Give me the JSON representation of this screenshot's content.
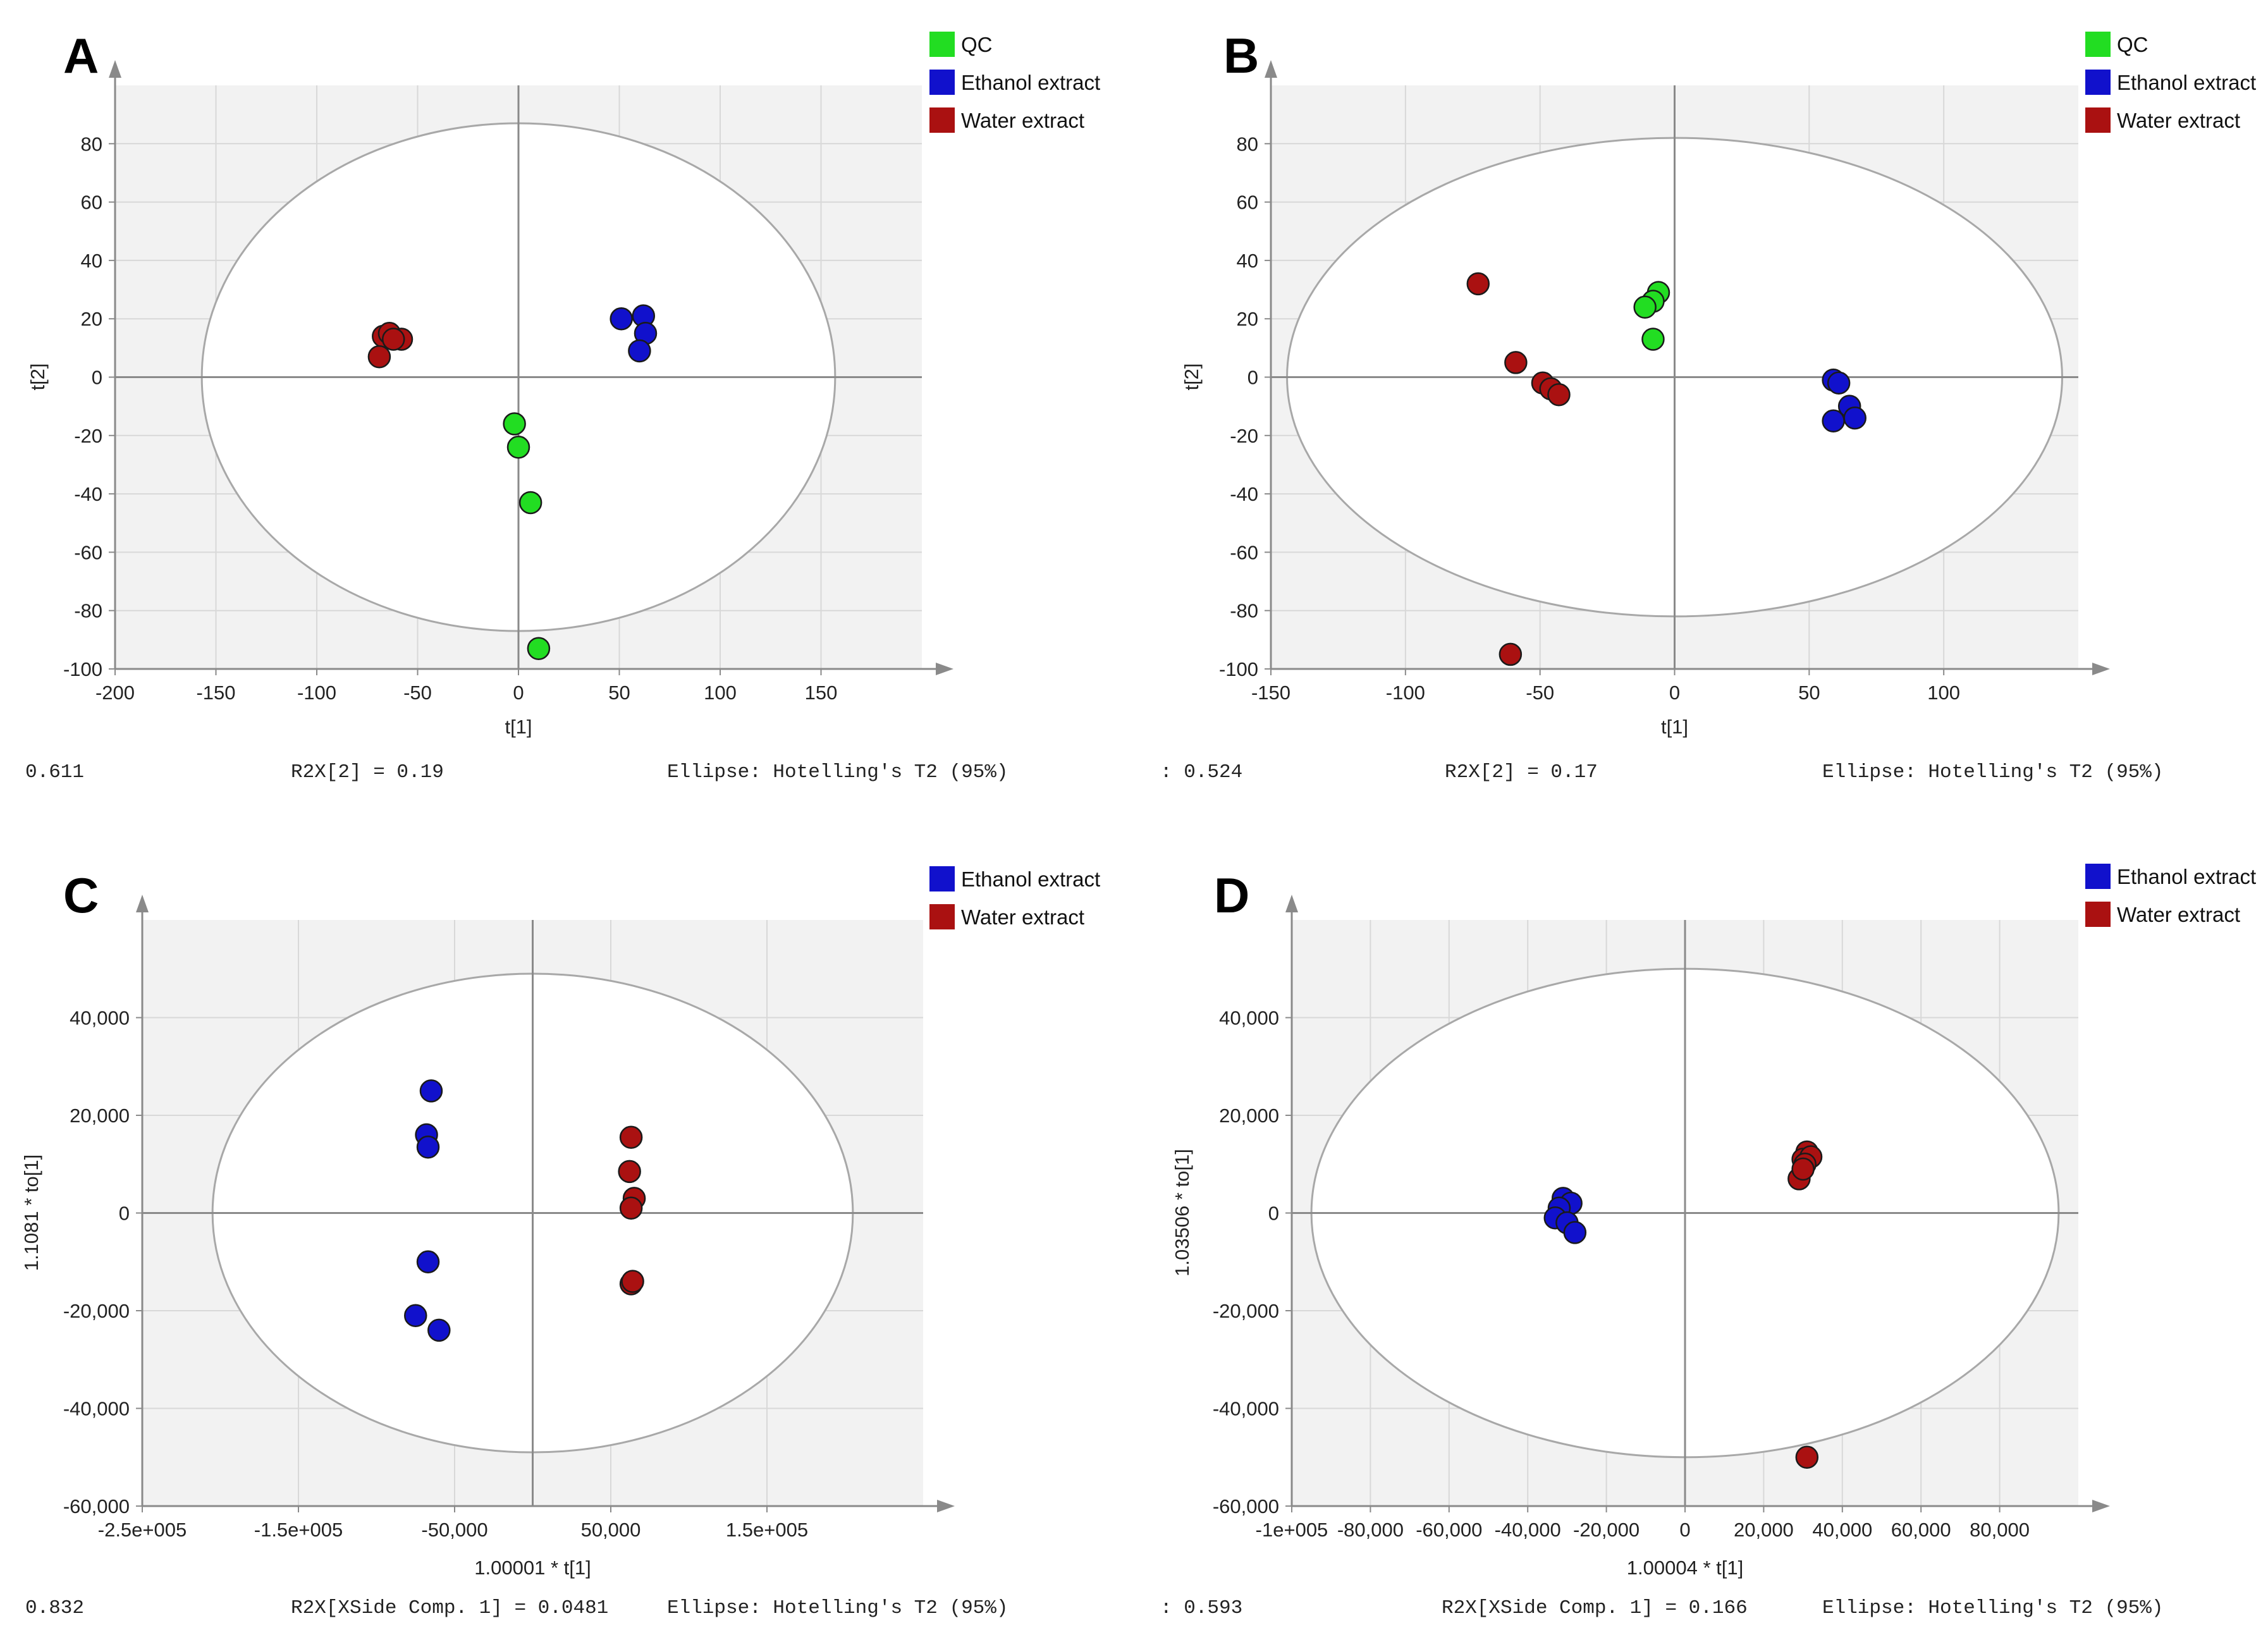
{
  "colors": {
    "QC": "#22dd22",
    "Ethanol extract": "#1111cc",
    "Water extract": "#aa1111",
    "plot_bg": "#f2f2f2",
    "grid": "#d8d8d8",
    "axis": "#8a8a8a"
  },
  "chart_data": [
    {
      "panel": "A",
      "type": "scatter",
      "xlabel": "t[1]",
      "ylabel": "t[2]",
      "xlim": [
        -200,
        200
      ],
      "ylim": [
        -100,
        100
      ],
      "xticks": [
        -200,
        -150,
        -100,
        -50,
        0,
        50,
        100,
        150
      ],
      "xtick_labels": [
        "-200",
        "-150",
        "-100",
        "-50",
        "0",
        "50",
        "100",
        "150"
      ],
      "yticks": [
        -100,
        -80,
        -60,
        -40,
        -20,
        0,
        20,
        40,
        60,
        80
      ],
      "ytick_labels": [
        "-100",
        "-80",
        "-60",
        "-40",
        "-20",
        "0",
        "20",
        "40",
        "60",
        "80"
      ],
      "ellipse": {
        "rx": 157,
        "ry": 87
      },
      "legend": [
        "QC",
        "Ethanol extract",
        "Water extract"
      ],
      "footer": {
        "left": "0.611",
        "mid": "R2X[2] = 0.19",
        "right": "Ellipse: Hotelling's T2 (95%)"
      },
      "series": [
        {
          "name": "QC",
          "x": [
            -2,
            0,
            6,
            10
          ],
          "y": [
            -16,
            -24,
            -43,
            -93
          ]
        },
        {
          "name": "Ethanol extract",
          "x": [
            51,
            62,
            63,
            60
          ],
          "y": [
            20,
            21,
            15,
            9
          ]
        },
        {
          "name": "Water extract",
          "x": [
            -67,
            -64,
            -58,
            -69,
            -62
          ],
          "y": [
            14,
            15,
            13,
            7,
            13
          ]
        }
      ]
    },
    {
      "panel": "B",
      "type": "scatter",
      "xlabel": "t[1]",
      "ylabel": "t[2]",
      "xlim": [
        -150,
        150
      ],
      "ylim": [
        -100,
        100
      ],
      "xticks": [
        -150,
        -100,
        -50,
        0,
        50,
        100
      ],
      "xtick_labels": [
        "-150",
        "-100",
        "-50",
        "0",
        "50",
        "100"
      ],
      "yticks": [
        -100,
        -80,
        -60,
        -40,
        -20,
        0,
        20,
        40,
        60,
        80
      ],
      "ytick_labels": [
        "-100",
        "-80",
        "-60",
        "-40",
        "-20",
        "0",
        "20",
        "40",
        "60",
        "80"
      ],
      "ellipse": {
        "rx": 144,
        "ry": 82
      },
      "legend": [
        "QC",
        "Ethanol extract",
        "Water extract"
      ],
      "footer": {
        "left": ": 0.524",
        "mid": "R2X[2] = 0.17",
        "right": "Ellipse: Hotelling's T2 (95%)"
      },
      "series": [
        {
          "name": "QC",
          "x": [
            -6,
            -8,
            -11,
            -8
          ],
          "y": [
            29,
            26,
            24,
            13
          ]
        },
        {
          "name": "Ethanol extract",
          "x": [
            59,
            61,
            65,
            59,
            67
          ],
          "y": [
            -1,
            -2,
            -10,
            -15,
            -14
          ]
        },
        {
          "name": "Water extract",
          "x": [
            -73,
            -59,
            -49,
            -46,
            -43,
            -61
          ],
          "y": [
            32,
            5,
            -2,
            -4,
            -6,
            -95
          ]
        }
      ]
    },
    {
      "panel": "C",
      "type": "scatter",
      "xlabel": "1.00001 * t[1]",
      "ylabel": "1.1081 * to[1]",
      "xlim": [
        -250000,
        250000
      ],
      "ylim": [
        -60000,
        60000
      ],
      "xticks": [
        -250000,
        -150000,
        -50000,
        50000,
        150000
      ],
      "xtick_labels": [
        "-2.5e+005",
        "-1.5e+005",
        "-50,000",
        "50,000",
        "1.5e+005"
      ],
      "yticks": [
        -60000,
        -40000,
        -20000,
        0,
        20000,
        40000
      ],
      "ytick_labels": [
        "-60,000",
        "-40,000",
        "-20,000",
        "0",
        "20,000",
        "40,000"
      ],
      "ellipse": {
        "rx": 205000,
        "ry": 49000
      },
      "legend": [
        "Ethanol extract",
        "Water extract"
      ],
      "footer": {
        "left": "0.832",
        "mid": "R2X[XSide Comp. 1] = 0.0481",
        "right": "Ellipse: Hotelling's T2 (95%)"
      },
      "series": [
        {
          "name": "Ethanol extract",
          "x": [
            -65000,
            -68000,
            -67000,
            -67000,
            -75000,
            -60000
          ],
          "y": [
            25000,
            16000,
            13500,
            -10000,
            -21000,
            -24000
          ]
        },
        {
          "name": "Water extract",
          "x": [
            63000,
            62000,
            65000,
            63000,
            63000,
            64000
          ],
          "y": [
            15500,
            8500,
            3000,
            1000,
            -14500,
            -14000
          ]
        }
      ]
    },
    {
      "panel": "D",
      "type": "scatter",
      "xlabel": "1.00004 * t[1]",
      "ylabel": "1.03506 * to[1]",
      "xlim": [
        -100000,
        100000
      ],
      "ylim": [
        -60000,
        60000
      ],
      "xticks": [
        -100000,
        -80000,
        -60000,
        -40000,
        -20000,
        0,
        20000,
        40000,
        60000,
        80000
      ],
      "xtick_labels": [
        "-1e+005",
        "-80,000",
        "-60,000",
        "-40,000",
        "-20,000",
        "0",
        "20,000",
        "40,000",
        "60,000",
        "80,000"
      ],
      "yticks": [
        -60000,
        -40000,
        -20000,
        0,
        20000,
        40000
      ],
      "ytick_labels": [
        "-60,000",
        "-40,000",
        "-20,000",
        "0",
        "20,000",
        "40,000"
      ],
      "ellipse": {
        "rx": 95000,
        "ry": 50000
      },
      "legend": [
        "Ethanol extract",
        "Water extract"
      ],
      "footer": {
        "left": ": 0.593",
        "mid": "R2X[XSide Comp. 1] = 0.166",
        "right": "Ellipse: Hotelling's T2 (95%)"
      },
      "series": [
        {
          "name": "Ethanol extract",
          "x": [
            -31000,
            -29000,
            -32000,
            -33000,
            -30000,
            -28000
          ],
          "y": [
            3000,
            2000,
            1000,
            -1000,
            -2000,
            -4000
          ]
        },
        {
          "name": "Water extract",
          "x": [
            31000,
            30000,
            32000,
            29000,
            30500,
            31000,
            30000
          ],
          "y": [
            12500,
            11000,
            11500,
            7000,
            10000,
            -50000,
            9000
          ]
        }
      ]
    }
  ]
}
